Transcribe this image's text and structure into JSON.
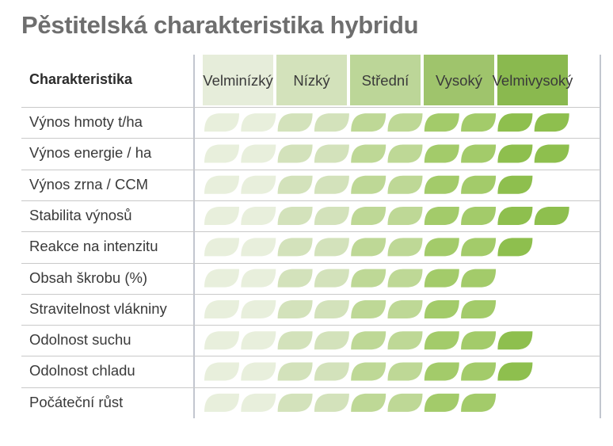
{
  "title": "Pěstitelská charakteristika hybridu",
  "chart_data": {
    "type": "table",
    "row_header": "Charakteristika",
    "levels": [
      {
        "label": "Velmi nízký",
        "lines": [
          "Velmi",
          "nízký"
        ],
        "color": "#e6edda",
        "text": "#3a3a3a"
      },
      {
        "label": "Nízký",
        "lines": [
          "Nízký"
        ],
        "color": "#d3e2bb",
        "text": "#3a3a3a"
      },
      {
        "label": "Střední",
        "lines": [
          "Střední"
        ],
        "color": "#bcd698",
        "text": "#3a3a3a"
      },
      {
        "label": "Vysoký",
        "lines": [
          "Vysoký"
        ],
        "color": "#9fc46c",
        "text": "#3a3a3a"
      },
      {
        "label": "Velmi vysoký",
        "lines": [
          "Velmi",
          "vysoký"
        ],
        "color": "#8ab94f",
        "text": "#3a3a3a"
      }
    ],
    "leaf_colors": [
      "#e8efdc",
      "#e8efdc",
      "#d3e2bb",
      "#d3e2bb",
      "#bed896",
      "#bed896",
      "#a3cb6a",
      "#a3cb6a",
      "#8ebf4e",
      "#8ebf4e"
    ],
    "rows": [
      {
        "label": "Výnos hmoty t/ha",
        "value": 10
      },
      {
        "label": "Výnos energie / ha",
        "value": 10
      },
      {
        "label": "Výnos zrna / CCM",
        "value": 9
      },
      {
        "label": "Stabilita výnosů",
        "value": 10
      },
      {
        "label": "Reakce na intenzitu",
        "value": 9
      },
      {
        "label": "Obsah škrobu (%)",
        "value": 8
      },
      {
        "label": "Stravitelnost vlákniny",
        "value": 8
      },
      {
        "label": "Odolnost suchu",
        "value": 9
      },
      {
        "label": "Odolnost chladu",
        "value": 9
      },
      {
        "label": "Počáteční růst",
        "value": 8
      }
    ]
  }
}
